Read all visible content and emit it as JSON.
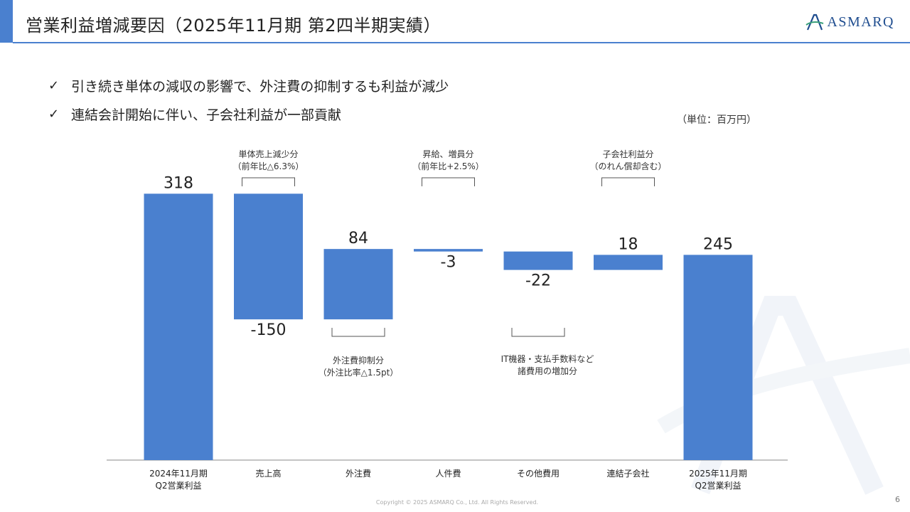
{
  "header": {
    "title": "営業利益増減要因（2025年11月期 第2四半期実績）",
    "logo_text": "ASMARQ",
    "logo_icon": "asmarq-a-mark-icon",
    "accent_color": "#4a80cf"
  },
  "bullets": [
    {
      "icon": "check-icon",
      "text": "引き続き単体の減収の影響で、外注費の抑制するも利益が減少"
    },
    {
      "icon": "check-icon",
      "text": "連結会計開始に伴い、子会社利益が一部貢献"
    }
  ],
  "unit_label": "（単位：百万円）",
  "chart_data": {
    "type": "bar",
    "subtype": "waterfall",
    "bar_color": "#4a80cf",
    "categories": [
      [
        "2024年11月期",
        "Q2営業利益"
      ],
      [
        "売上高"
      ],
      [
        "外注費"
      ],
      [
        "人件費"
      ],
      [
        "その他費用"
      ],
      [
        "連結子会社"
      ],
      [
        "2025年11月期",
        "Q2営業利益"
      ]
    ],
    "values": [
      318,
      -150,
      84,
      -3,
      -22,
      18,
      245
    ],
    "value_labels": [
      "318",
      "-150",
      "84",
      "-3",
      "-22",
      "18",
      "245"
    ],
    "kinds": [
      "total",
      "delta",
      "delta",
      "delta",
      "delta",
      "delta",
      "total"
    ],
    "annotations": [
      {
        "bar": 1,
        "position": "above",
        "lines": [
          "単体売上減少分",
          "（前年比△6.3%）"
        ]
      },
      {
        "bar": 2,
        "position": "below",
        "lines": [
          "外注費抑制分",
          "（外注比率△1.5pt）"
        ]
      },
      {
        "bar": 3,
        "position": "above",
        "lines": [
          "昇給、増員分",
          "（前年比+2.5%）"
        ]
      },
      {
        "bar": 4,
        "position": "below",
        "lines": [
          "IT機器・支払手数料など",
          "諸費用の増加分"
        ]
      },
      {
        "bar": 5,
        "position": "above",
        "lines": [
          "子会社利益分",
          "（のれん償却含む）"
        ]
      }
    ],
    "xlabel": "",
    "ylabel": "",
    "ylim": [
      0,
      340
    ],
    "grid": false,
    "legend": "none"
  },
  "footer": {
    "copyright": "Copyright © 2025 ASMARQ Co., Ltd. All Rights Reserved.",
    "page_number": "6"
  }
}
